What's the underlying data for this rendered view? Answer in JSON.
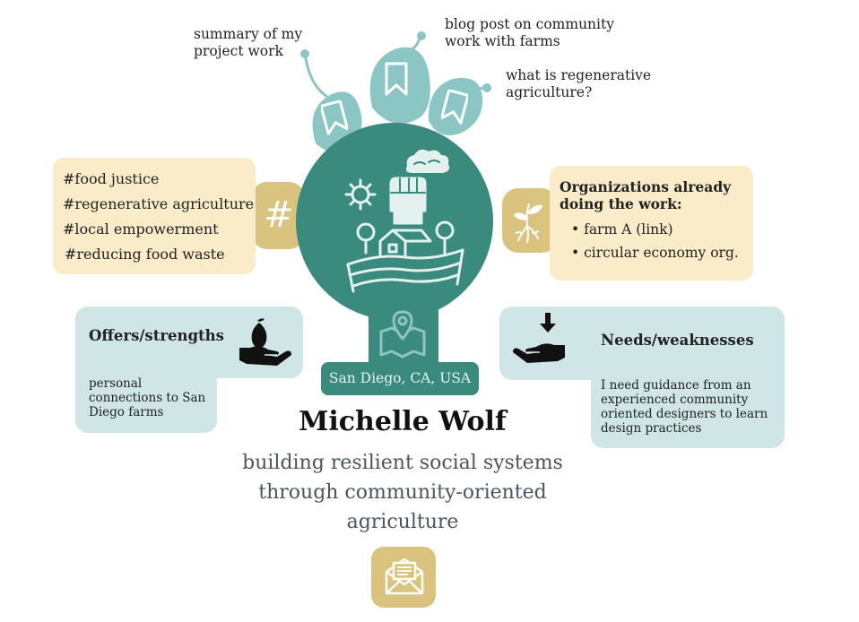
{
  "resources": {
    "summary": "summary of my\nproject work",
    "blog": "blog post on community\nwork with farms",
    "regen": "what is regenerative\nagriculture?"
  },
  "tags": [
    "#food justice",
    "#regenerative agriculture",
    "#local empowerment",
    "#reducing food waste"
  ],
  "organizations": {
    "heading": "Organizations already\ndoing the work:",
    "items": [
      "farm A (link)",
      "circular economy org."
    ]
  },
  "offers": {
    "heading": "Offers/strengths",
    "body": "personal\nconnections to San\nDiego farms"
  },
  "needs": {
    "heading": "Needs/weaknesses",
    "body": "I need guidance from an\nexperienced community\noriented designers to learn\ndesign practices"
  },
  "location": "San Diego, CA, USA",
  "name": "Michelle Wolf",
  "tagline": "building resilient social systems\nthrough community-oriented\nagriculture",
  "icons": {
    "resource1": "bookmark-icon",
    "resource2": "bookmark-icon",
    "resource3": "bookmark-icon",
    "hashtag": "hashtag-icon",
    "sprout": "sprout-icon",
    "farm": "farm-fist-icon",
    "offers": "hand-offering-fruit-icon",
    "needs": "hand-receiving-icon",
    "map": "map-pin-icon",
    "mail": "mail-icon"
  },
  "colors": {
    "teal_dark": "#3a8a7e",
    "teal_light": "#8cc6c4",
    "card_light": "#cfe5e6",
    "cream": "#fbecc9",
    "gold": "#d9c37e"
  }
}
